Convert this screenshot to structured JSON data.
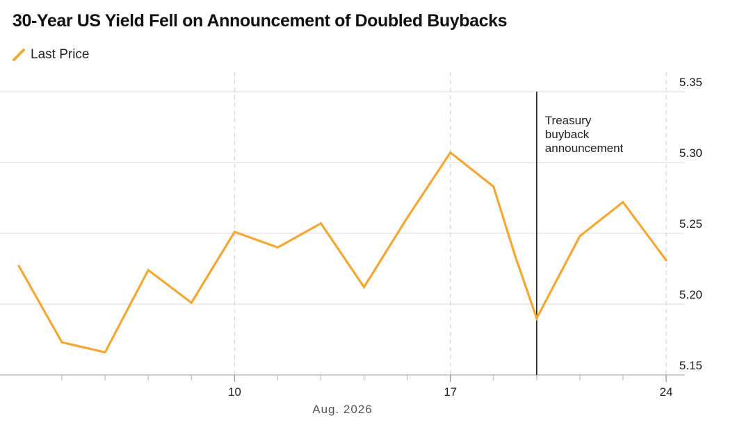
{
  "chart_data": {
    "type": "line",
    "title": "30-Year US Yield Fell on Announcement of Doubled Buybacks",
    "series": [
      {
        "name": "Last Price",
        "color": "#f5a733",
        "x": [
          0,
          2,
          4,
          6,
          8,
          10,
          12,
          14,
          16,
          18,
          20,
          22,
          23,
          24,
          26,
          28,
          30
        ],
        "values": [
          5.227,
          5.173,
          5.166,
          5.224,
          5.201,
          5.251,
          5.24,
          5.257,
          5.212,
          5.261,
          5.307,
          5.283,
          5.234,
          5.19,
          5.248,
          5.272,
          5.231
        ]
      }
    ],
    "x_ticks": [
      {
        "x": 10,
        "label": "10"
      },
      {
        "x": 20,
        "label": "17"
      },
      {
        "x": 30,
        "label": "24"
      }
    ],
    "x_minor_ticks": [
      2,
      4,
      6,
      8,
      12,
      14,
      16,
      18,
      22,
      24,
      26,
      28
    ],
    "month_label": "Aug. 2026",
    "y_ticks": [
      5.15,
      5.2,
      5.25,
      5.3,
      5.35
    ],
    "y_tick_labels": [
      "5.15",
      "5.20",
      "5.25",
      "5.30",
      "5.35"
    ],
    "ylim": [
      5.15,
      5.35
    ],
    "grid": true,
    "y_axis_position": "right",
    "annotation": {
      "x": 24,
      "lines": [
        "Treasury",
        "buyback",
        "announcement"
      ]
    },
    "legend_position": "top-left"
  }
}
